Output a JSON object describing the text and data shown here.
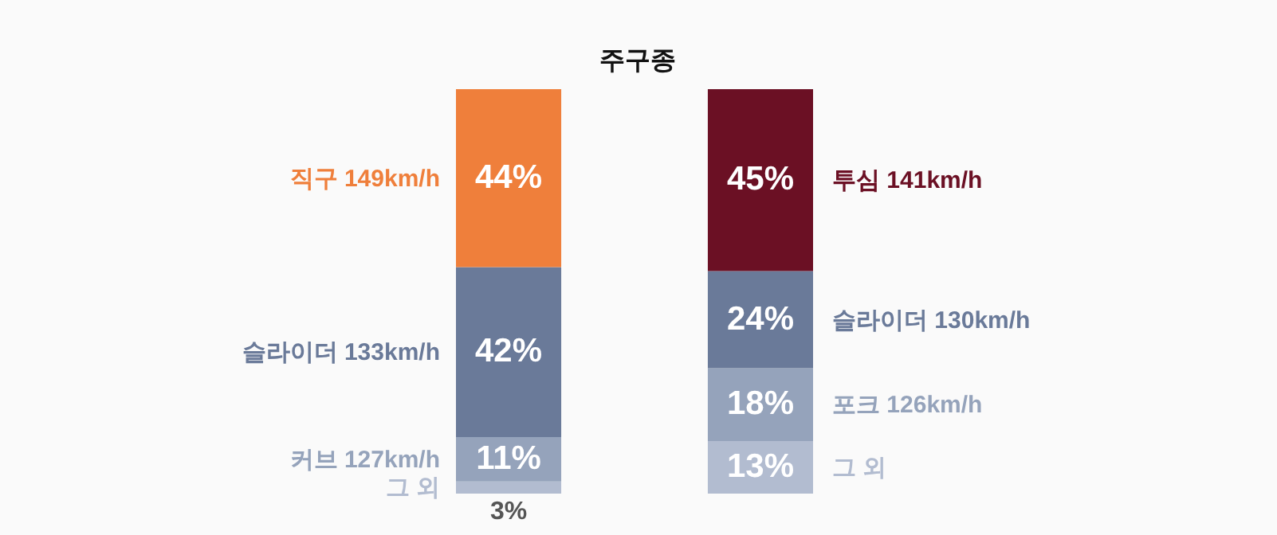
{
  "chart_data": {
    "type": "bar",
    "title": "주구종",
    "stacked": true,
    "categories": [
      null,
      null
    ],
    "tick_labels": false,
    "series": [
      {
        "name": "그 외",
        "color": "#b2bcd0",
        "values": [
          3,
          null
        ],
        "value_labels": [
          "3%",
          null
        ]
      },
      {
        "name": "그 외",
        "color": "#b2bcd0",
        "values": [
          null,
          13
        ],
        "value_labels": [
          null,
          "13%"
        ]
      },
      {
        "name": "커브 127km/h",
        "color": "#95a3bb",
        "values": [
          11,
          null
        ],
        "value_labels": [
          "11%",
          null
        ]
      },
      {
        "name": "포크 126km/h",
        "color": "#95a3bb",
        "values": [
          null,
          18
        ],
        "value_labels": [
          null,
          "18%"
        ]
      },
      {
        "name": "슬라이더 133km/h",
        "color": "#6a7a99",
        "values": [
          42,
          null
        ],
        "value_labels": [
          "42%",
          null
        ]
      },
      {
        "name": "슬라이더 130km/h",
        "color": "#6a7a99",
        "values": [
          null,
          24
        ],
        "value_labels": [
          null,
          "24%"
        ]
      },
      {
        "name": "직구 149km/h",
        "color": "#ef7f3b",
        "values": [
          44,
          null
        ],
        "value_labels": [
          "44%",
          null
        ]
      },
      {
        "name": "투심 141km/h",
        "color": "#6b1024",
        "values": [
          null,
          45
        ],
        "value_labels": [
          null,
          "45%"
        ]
      }
    ]
  }
}
